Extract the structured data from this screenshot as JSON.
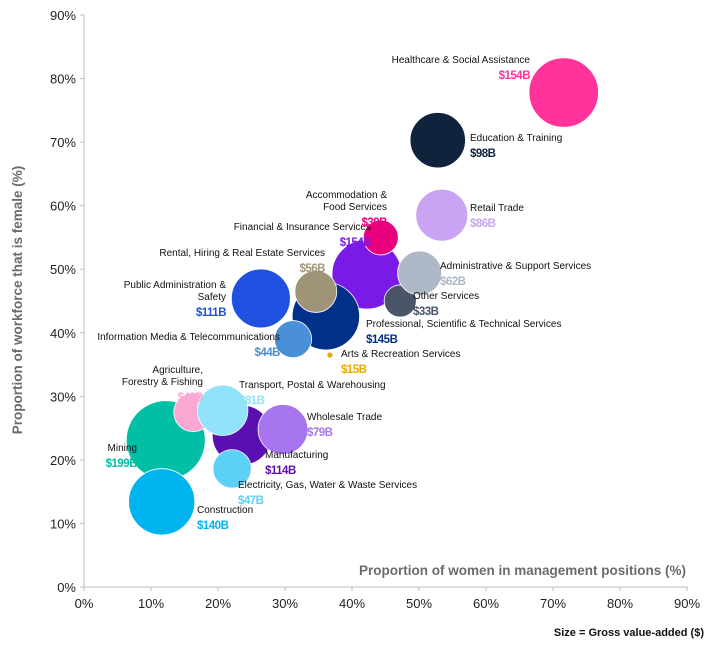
{
  "chart_data": {
    "type": "scatter",
    "subtype": "bubble",
    "xlabel": "Proportion of women in management positions (%)",
    "ylabel": "Proportion of workforce that is female (%)",
    "size_label": "Size = Gross value-added ($)",
    "xlim": [
      0,
      90
    ],
    "ylim": [
      0,
      90
    ],
    "xticks": [
      "0%",
      "10%",
      "20%",
      "30%",
      "40%",
      "50%",
      "60%",
      "70%",
      "80%",
      "90%"
    ],
    "yticks": [
      "0%",
      "10%",
      "20%",
      "30%",
      "40%",
      "50%",
      "60%",
      "70%",
      "80%",
      "90%"
    ],
    "grid": false,
    "points": [
      {
        "name": "Mining",
        "x": 12.2,
        "y": 23.1,
        "size": 199,
        "value_label": "$199B",
        "color": "#00bfa5"
      },
      {
        "name": "Construction",
        "x": 11.6,
        "y": 13.4,
        "size": 140,
        "value_label": "$140B",
        "color": "#00b4f0"
      },
      {
        "name": "Manufacturing",
        "x": 23.6,
        "y": 23.9,
        "size": 114,
        "value_label": "$114B",
        "color": "#5a10b0"
      },
      {
        "name": "Electricity, Gas, Water & Waste Services",
        "x": 22.1,
        "y": 18.6,
        "size": 47,
        "value_label": "$47B",
        "color": "#5dd0f5"
      },
      {
        "name": "Agriculture, Forestry & Fishing",
        "x": 16.3,
        "y": 27.5,
        "size": 48,
        "value_label": "$48B",
        "color": "#f9a8d4"
      },
      {
        "name": "Transport, Postal & Warehousing",
        "x": 20.7,
        "y": 27.8,
        "size": 81,
        "value_label": "$81B",
        "color": "#92e2fb"
      },
      {
        "name": "Wholesale Trade",
        "x": 29.7,
        "y": 24.8,
        "size": 79,
        "value_label": "$79B",
        "color": "#a875f0"
      },
      {
        "name": "Financial & Insurance Services",
        "x": 42.2,
        "y": 49.2,
        "size": 154,
        "value_label": "$154B",
        "color": "#7a1ae6"
      },
      {
        "name": "Professional, Scientific & Technical Services",
        "x": 36.1,
        "y": 42.6,
        "size": 145,
        "value_label": "$145B",
        "color": "#003087"
      },
      {
        "name": "Rental, Hiring & Real Estate Services",
        "x": 34.6,
        "y": 46.5,
        "size": 56,
        "value_label": "$56B",
        "color": "#a09478"
      },
      {
        "name": "Public Administration & Safety",
        "x": 26.4,
        "y": 45.4,
        "size": 111,
        "value_label": "$111B",
        "color": "#2050e0"
      },
      {
        "name": "Information Media & Telecommunications",
        "x": 31.2,
        "y": 39.0,
        "size": 44,
        "value_label": "$44B",
        "color": "#4a90d9"
      },
      {
        "name": "Arts & Recreation Services",
        "x": 36.7,
        "y": 36.5,
        "size": 15,
        "value_label": "$15B",
        "color": "#e8a800"
      },
      {
        "name": "Other Services",
        "x": 47.2,
        "y": 45.0,
        "size": 33,
        "value_label": "$33B",
        "color": "#4a5568"
      },
      {
        "name": "Administrative & Support Services",
        "x": 50.1,
        "y": 49.4,
        "size": 62,
        "value_label": "$62B",
        "color": "#aeb8c6"
      },
      {
        "name": "Accommodation & Food Services",
        "x": 44.3,
        "y": 55.0,
        "size": 39,
        "value_label": "$39B",
        "color": "#e8007d"
      },
      {
        "name": "Retail Trade",
        "x": 53.4,
        "y": 58.5,
        "size": 86,
        "value_label": "$86B",
        "color": "#c9a4f5"
      },
      {
        "name": "Education & Training",
        "x": 52.8,
        "y": 70.3,
        "size": 98,
        "value_label": "$98B",
        "color": "#0f233d"
      },
      {
        "name": "Healthcare & Social Assistance",
        "x": 71.6,
        "y": 77.8,
        "size": 154,
        "value_label": "$154B",
        "color": "#ff3399"
      }
    ]
  }
}
